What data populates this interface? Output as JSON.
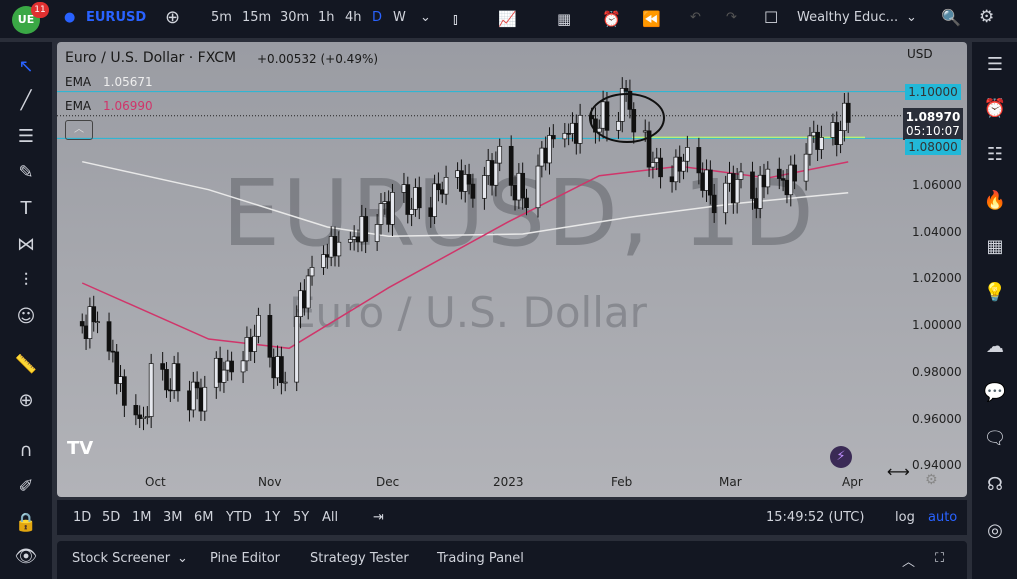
{
  "topbar": {
    "notif_count": "11",
    "symbol": "EURUSD",
    "intervals": [
      "5m",
      "15m",
      "30m",
      "1h",
      "4h",
      "D",
      "W"
    ],
    "active_interval": "D",
    "layout_name": "Wealthy Educ..."
  },
  "legend": {
    "title": "Euro / U.S. Dollar · FXCM",
    "change": "+0.00532 (+0.49%)",
    "ema1_label": "EMA",
    "ema1_value": "1.05671",
    "ema2_label": "EMA",
    "ema2_value": "1.06990"
  },
  "watermark": {
    "line1": "EURUSD, 1D",
    "line2": "Euro / U.S. Dollar"
  },
  "price_axis": {
    "currency": "USD",
    "ticks": [
      "1.06000",
      "1.04000",
      "1.02000",
      "1.00000",
      "0.98000",
      "0.96000",
      "0.94000"
    ],
    "level_high": "1.10000",
    "level_low": "1.08000",
    "last_price": "1.08970",
    "countdown": "05:10:07"
  },
  "time_axis": [
    "Oct",
    "Nov",
    "Dec",
    "2023",
    "Feb",
    "Mar",
    "Apr"
  ],
  "bottom_bar": {
    "ranges": [
      "1D",
      "5D",
      "1M",
      "3M",
      "6M",
      "YTD",
      "1Y",
      "5Y",
      "All"
    ],
    "clock": "15:49:52 (UTC)",
    "log": "log",
    "auto": "auto"
  },
  "bottom_panel": {
    "tabs": [
      "Stock Screener",
      "Pine Editor",
      "Strategy Tester",
      "Trading Panel"
    ]
  },
  "colors": {
    "up": "#e6e8ee",
    "down": "#111111",
    "ema_fast": "#d0356a",
    "ema_slow": "#e8e8e8",
    "hline": "#22b8d8",
    "support": "#b8f07a",
    "accent": "#2962ff"
  },
  "chart_data": {
    "type": "candlestick",
    "ylim": [
      0.93,
      1.115
    ],
    "weekly_closes": [
      [
        "2022-09-12",
        1.0015
      ],
      [
        "2022-09-16",
        1.0015
      ],
      [
        "2022-09-23",
        0.969
      ],
      [
        "2022-09-28",
        0.958
      ],
      [
        "2022-09-30",
        0.98
      ],
      [
        "2022-10-07",
        0.974
      ],
      [
        "2022-10-13",
        0.968
      ],
      [
        "2022-10-21",
        0.986
      ],
      [
        "2022-10-28",
        0.996
      ],
      [
        "2022-11-03",
        0.975
      ],
      [
        "2022-11-10",
        1.021
      ],
      [
        "2022-11-15",
        1.035
      ],
      [
        "2022-11-18",
        1.032
      ],
      [
        "2022-11-25",
        1.04
      ],
      [
        "2022-12-02",
        1.054
      ],
      [
        "2022-12-09",
        1.053
      ],
      [
        "2022-12-16",
        1.058
      ],
      [
        "2022-12-23",
        1.062
      ],
      [
        "2022-12-30",
        1.07
      ],
      [
        "2023-01-06",
        1.052
      ],
      [
        "2023-01-13",
        1.083
      ],
      [
        "2023-01-20",
        1.085
      ],
      [
        "2023-01-27",
        1.087
      ],
      [
        "2023-02-02",
        1.099
      ],
      [
        "2023-02-03",
        1.08
      ],
      [
        "2023-02-10",
        1.068
      ],
      [
        "2023-02-17",
        1.069
      ],
      [
        "2023-02-24",
        1.055
      ],
      [
        "2023-03-03",
        1.063
      ],
      [
        "2023-03-07",
        1.056
      ],
      [
        "2023-03-10",
        1.064
      ],
      [
        "2023-03-15",
        1.058
      ],
      [
        "2023-03-17",
        1.067
      ],
      [
        "2023-03-23",
        1.084
      ],
      [
        "2023-03-24",
        1.076
      ],
      [
        "2023-03-31",
        1.0897
      ]
    ],
    "ema_slow": [
      [
        "2022-09-12",
        1.07
      ],
      [
        "2022-10-15",
        1.058
      ],
      [
        "2022-11-15",
        1.042
      ],
      [
        "2022-12-01",
        1.038
      ],
      [
        "2023-01-05",
        1.039
      ],
      [
        "2023-02-01",
        1.046
      ],
      [
        "2023-03-01",
        1.052
      ],
      [
        "2023-03-31",
        1.0567
      ]
    ],
    "ema_fast": [
      [
        "2022-09-12",
        1.018
      ],
      [
        "2022-10-15",
        0.994
      ],
      [
        "2022-11-05",
        0.99
      ],
      [
        "2022-12-01",
        1.016
      ],
      [
        "2023-01-01",
        1.044
      ],
      [
        "2023-01-25",
        1.064
      ],
      [
        "2023-02-15",
        1.068
      ],
      [
        "2023-03-10",
        1.063
      ],
      [
        "2023-03-31",
        1.0699
      ]
    ]
  }
}
